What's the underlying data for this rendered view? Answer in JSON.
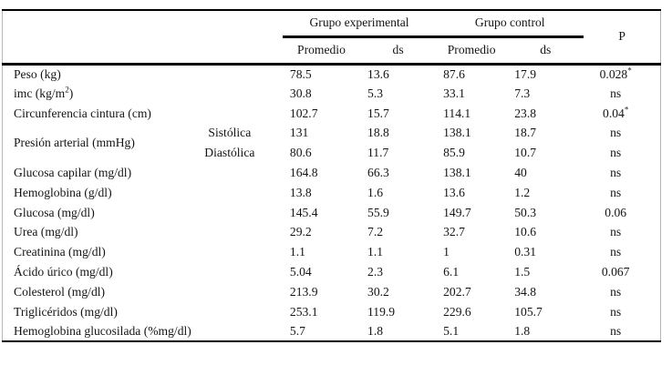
{
  "colors": {
    "rule_black": "#000000",
    "frame_gray": "#b7b7b7",
    "text": "#141414",
    "background": "#ffffff"
  },
  "table": {
    "header": {
      "group_experimental": "Grupo experimental",
      "group_control": "Grupo control",
      "p_label": "P",
      "col_promedio": "Promedio",
      "col_ds": "ds"
    },
    "rows": [
      {
        "label": "Peso (kg)",
        "exp_prom": "78.5",
        "exp_ds": "13.6",
        "ctl_prom": "87.6",
        "ctl_ds": "17.9",
        "p": "0.028",
        "p_sup": "*"
      },
      {
        "label_prefix": "imc (kg/m",
        "label_sup": "2",
        "label_suffix": ")",
        "exp_prom": "30.8",
        "exp_ds": "5.3",
        "ctl_prom": "33.1",
        "ctl_ds": "7.3",
        "p": "ns"
      },
      {
        "label": "Circunferencia cintura (cm)",
        "exp_prom": "102.7",
        "exp_ds": "15.7",
        "ctl_prom": "114.1",
        "ctl_ds": "23.8",
        "p": "0.04",
        "p_sup": "*"
      },
      {
        "label": "Presión arterial (mmHg)",
        "sub": "Sistólica",
        "exp_prom": "131",
        "exp_ds": "18.8",
        "ctl_prom": "138.1",
        "ctl_ds": "18.7",
        "p": "ns"
      },
      {
        "sub": "Diastólica",
        "exp_prom": "80.6",
        "exp_ds": "11.7",
        "ctl_prom": "85.9",
        "ctl_ds": "10.7",
        "p": "ns"
      },
      {
        "label": "Glucosa capilar (mg/dl)",
        "exp_prom": "164.8",
        "exp_ds": "66.3",
        "ctl_prom": "138.1",
        "ctl_ds": "40",
        "p": "ns"
      },
      {
        "label": "Hemoglobina (g/dl)",
        "exp_prom": "13.8",
        "exp_ds": "1.6",
        "ctl_prom": "13.6",
        "ctl_ds": "1.2",
        "p": "ns"
      },
      {
        "label": "Glucosa (mg/dl)",
        "exp_prom": "145.4",
        "exp_ds": "55.9",
        "ctl_prom": "149.7",
        "ctl_ds": "50.3",
        "p": "0.06"
      },
      {
        "label": "Urea (mg/dl)",
        "exp_prom": "29.2",
        "exp_ds": "7.2",
        "ctl_prom": "32.7",
        "ctl_ds": "10.6",
        "p": "ns"
      },
      {
        "label": "Creatinina (mg/dl)",
        "exp_prom": "1.1",
        "exp_ds": "1.1",
        "ctl_prom": "1",
        "ctl_ds": "0.31",
        "p": "ns"
      },
      {
        "label": "Ácido úrico (mg/dl)",
        "exp_prom": "5.04",
        "exp_ds": "2.3",
        "ctl_prom": "6.1",
        "ctl_ds": "1.5",
        "p": "0.067"
      },
      {
        "label": "Colesterol (mg/dl)",
        "exp_prom": "213.9",
        "exp_ds": "30.2",
        "ctl_prom": "202.7",
        "ctl_ds": "34.8",
        "p": "ns"
      },
      {
        "label": "Triglicéridos (mg/dl)",
        "exp_prom": "253.1",
        "exp_ds": "119.9",
        "ctl_prom": "229.6",
        "ctl_ds": "105.7",
        "p": "ns"
      },
      {
        "label": "Hemoglobina glucosilada (%mg/dl)",
        "exp_prom": "5.7",
        "exp_ds": "1.8",
        "ctl_prom": "5.1",
        "ctl_ds": "1.8",
        "p": "ns"
      }
    ]
  }
}
